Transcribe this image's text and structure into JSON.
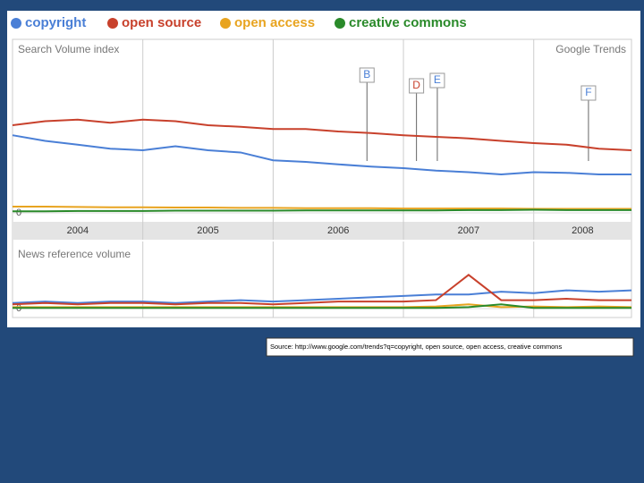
{
  "legend": [
    "copyright",
    "open source",
    "open access",
    "creative commons"
  ],
  "source": "Source: http://www.google.com/trends?q=copyright, open source, open access, creative commons",
  "chart_data": [
    {
      "type": "line",
      "title": "Search Volume index",
      "brand": "Google Trends",
      "x": [
        2004,
        2004.25,
        2004.5,
        2004.75,
        2005,
        2005.25,
        2005.5,
        2005.75,
        2006,
        2006.25,
        2006.5,
        2006.75,
        2007,
        2007.25,
        2007.5,
        2007.75,
        2008,
        2008.25,
        2008.5,
        2008.75
      ],
      "xlim": [
        2004,
        2008.75
      ],
      "xticks": [
        2004,
        2005,
        2006,
        2007,
        2008
      ],
      "ylim": [
        0,
        4.8
      ],
      "yticks": [
        0
      ],
      "grid": true,
      "series": [
        {
          "name": "copyright",
          "color": "#4a7fd6",
          "values": [
            2.48,
            2.3,
            2.18,
            2.05,
            2.0,
            2.13,
            2.0,
            1.93,
            1.68,
            1.63,
            1.55,
            1.48,
            1.43,
            1.35,
            1.3,
            1.23,
            1.3,
            1.28,
            1.23,
            1.23
          ]
        },
        {
          "name": "open source",
          "color": "#c8412c",
          "values": [
            2.8,
            2.93,
            2.98,
            2.88,
            2.98,
            2.93,
            2.8,
            2.75,
            2.68,
            2.68,
            2.6,
            2.55,
            2.48,
            2.43,
            2.38,
            2.3,
            2.23,
            2.18,
            2.05,
            2.0
          ]
        },
        {
          "name": "open access",
          "color": "#e8a420",
          "values": [
            0.2,
            0.2,
            0.19,
            0.18,
            0.18,
            0.17,
            0.17,
            0.16,
            0.16,
            0.15,
            0.15,
            0.15,
            0.14,
            0.14,
            0.14,
            0.14,
            0.13,
            0.13,
            0.13,
            0.13
          ]
        },
        {
          "name": "creative commons",
          "color": "#2a8a2a",
          "values": [
            0.05,
            0.05,
            0.06,
            0.06,
            0.06,
            0.07,
            0.07,
            0.07,
            0.07,
            0.08,
            0.08,
            0.08,
            0.08,
            0.08,
            0.09,
            0.09,
            0.1,
            0.09,
            0.09,
            0.09
          ]
        }
      ],
      "annotations": [
        {
          "label": "B",
          "x": 2006.72
        },
        {
          "label": "D",
          "x": 2007.1
        },
        {
          "label": "E",
          "x": 2007.26
        },
        {
          "label": "F",
          "x": 2008.42
        }
      ]
    },
    {
      "type": "line",
      "title": "News reference volume",
      "x": [
        2004,
        2004.25,
        2004.5,
        2004.75,
        2005,
        2005.25,
        2005.5,
        2005.75,
        2006,
        2006.25,
        2006.5,
        2006.75,
        2007,
        2007.25,
        2007.5,
        2007.75,
        2008,
        2008.25,
        2008.5,
        2008.75
      ],
      "xlim": [
        2004,
        2008.75
      ],
      "xticks": [
        2004,
        2005,
        2006,
        2007,
        2008
      ],
      "ylim": [
        0,
        3.5
      ],
      "yticks": [
        0
      ],
      "grid": true,
      "series": [
        {
          "color": "#4a7fd6",
          "values": [
            0.4,
            0.5,
            0.4,
            0.5,
            0.5,
            0.4,
            0.5,
            0.6,
            0.5,
            0.6,
            0.7,
            0.8,
            0.9,
            1.0,
            1.0,
            1.2,
            1.1,
            1.3,
            1.2,
            1.3
          ]
        },
        {
          "color": "#c8412c",
          "values": [
            0.3,
            0.4,
            0.3,
            0.4,
            0.4,
            0.3,
            0.4,
            0.4,
            0.3,
            0.4,
            0.5,
            0.5,
            0.5,
            0.6,
            2.4,
            0.6,
            0.6,
            0.7,
            0.6,
            0.6
          ]
        },
        {
          "color": "#e8a420",
          "values": [
            0.1,
            0.1,
            0.1,
            0.1,
            0.1,
            0.1,
            0.1,
            0.1,
            0.1,
            0.1,
            0.1,
            0.1,
            0.1,
            0.15,
            0.3,
            0.1,
            0.15,
            0.1,
            0.15,
            0.1
          ]
        },
        {
          "color": "#2a8a2a",
          "values": [
            0.05,
            0.05,
            0.05,
            0.05,
            0.05,
            0.05,
            0.05,
            0.05,
            0.05,
            0.05,
            0.05,
            0.05,
            0.05,
            0.05,
            0.1,
            0.3,
            0.05,
            0.05,
            0.05,
            0.05
          ]
        }
      ]
    }
  ]
}
